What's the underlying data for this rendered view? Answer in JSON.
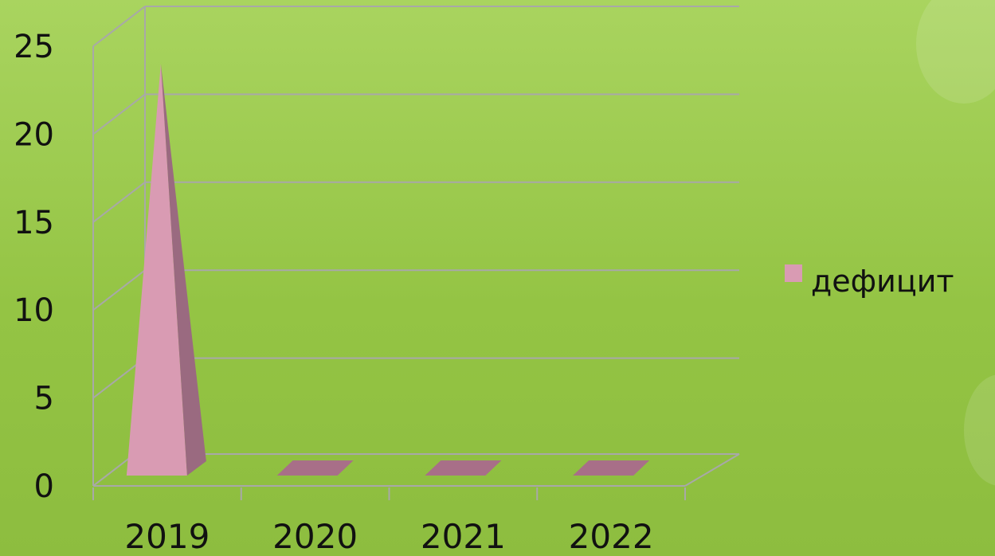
{
  "chart_data": {
    "type": "bar",
    "shape": "pyramid-3d",
    "categories": [
      "2019",
      "2020",
      "2021",
      "2022"
    ],
    "series": [
      {
        "name": "дефицит",
        "values": [
          24,
          0,
          0,
          0
        ]
      }
    ],
    "yticks": [
      "0",
      "5",
      "10",
      "15",
      "20",
      "25"
    ],
    "ylim": [
      0,
      25
    ],
    "grid": true,
    "legend": "right",
    "colors": {
      "series_front": "#d99bb3",
      "series_side": "#9a6a80",
      "flat_top": "#a86f88",
      "gridline": "#a8a8a8",
      "background": "#9ccb4f"
    }
  }
}
